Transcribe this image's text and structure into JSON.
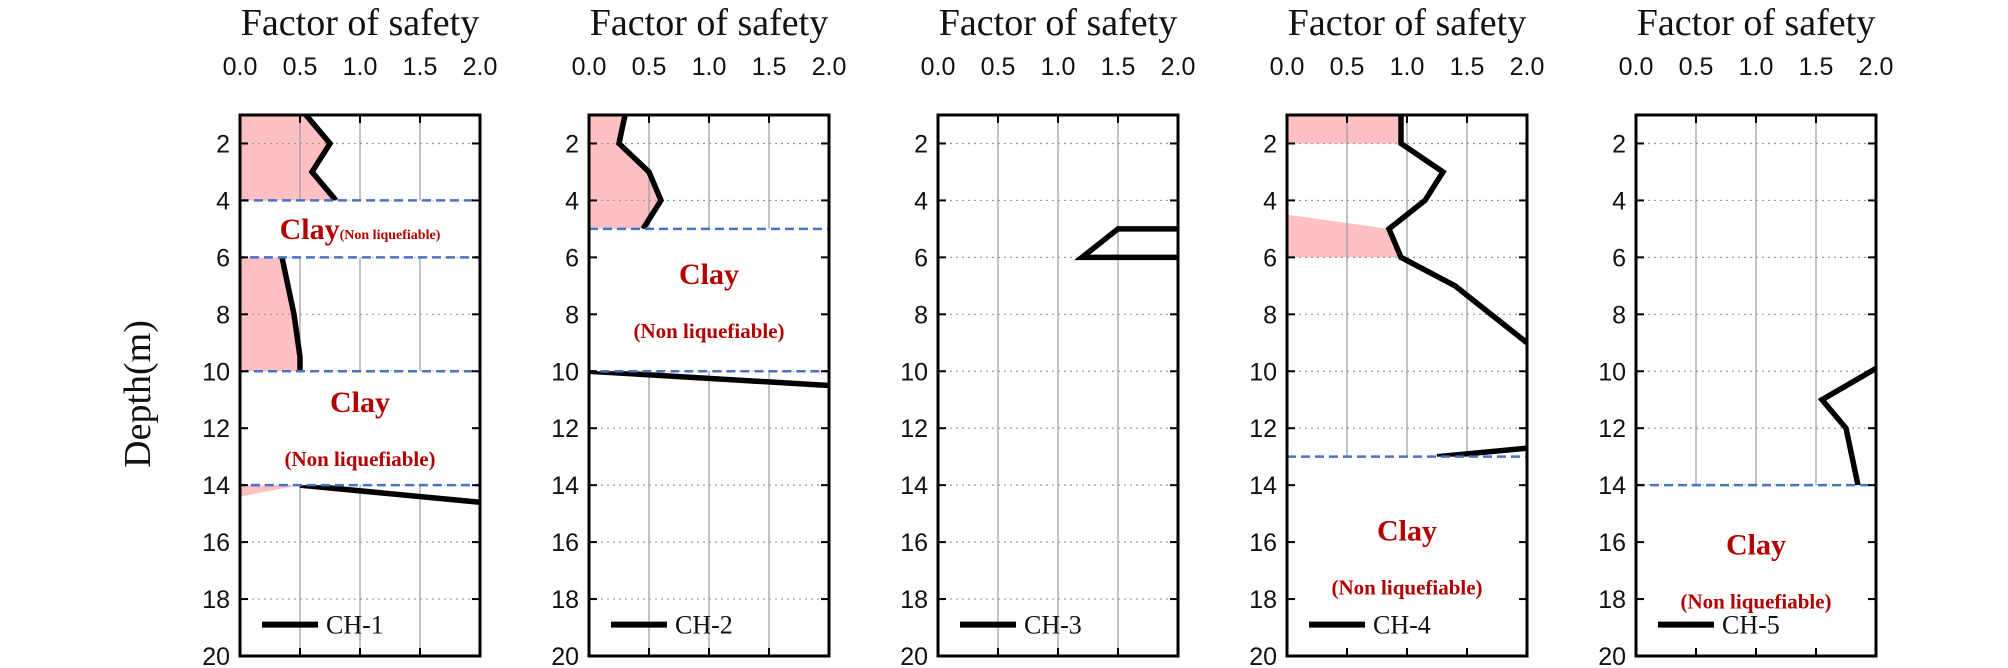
{
  "figure": {
    "ylabel": "Depth(m)"
  },
  "chart_data": [
    {
      "type": "line",
      "title": "Factor of safety",
      "xlim": [
        0,
        2
      ],
      "ylim": [
        1,
        20
      ],
      "xticks": [
        "0.0",
        "0.5",
        "1.0",
        "1.5",
        "2.0"
      ],
      "yticks": [
        "2",
        "4",
        "6",
        "8",
        "10",
        "12",
        "14",
        "16",
        "18",
        "20"
      ],
      "legend": "bottom-left",
      "series": [
        {
          "name": "CH-1",
          "color": "#000000",
          "segments": [
            [
              [
                0.55,
                1
              ],
              [
                0.75,
                2
              ],
              [
                0.6,
                3
              ],
              [
                0.8,
                4
              ]
            ],
            [
              [
                0.35,
                6
              ],
              [
                0.45,
                8
              ],
              [
                0.5,
                9.5
              ],
              [
                0.5,
                10
              ]
            ],
            [
              [
                0.5,
                14
              ],
              [
                2.0,
                14.6
              ]
            ]
          ]
        }
      ],
      "fill_below_1": {
        "color": "#ffc0c4",
        "ranges": [
          [
            1,
            4
          ],
          [
            6,
            10
          ],
          [
            14,
            14.4
          ]
        ]
      },
      "annotations": [
        {
          "main": "Clay",
          "sub": "(Non liquefiable)",
          "layout": "inline",
          "depth_range": [
            4,
            6
          ]
        },
        {
          "main": "Clay",
          "sub": "(Non liquefiable)",
          "layout": "stacked",
          "depth_range": [
            10,
            14
          ]
        }
      ]
    },
    {
      "type": "line",
      "title": "Factor of safety",
      "xlim": [
        0,
        2
      ],
      "ylim": [
        1,
        20
      ],
      "xticks": [
        "0.0",
        "0.5",
        "1.0",
        "1.5",
        "2.0"
      ],
      "yticks": [
        "2",
        "4",
        "6",
        "8",
        "10",
        "12",
        "14",
        "16",
        "18",
        "20"
      ],
      "legend": "bottom-left",
      "series": [
        {
          "name": "CH-2",
          "color": "#000000",
          "segments": [
            [
              [
                0.3,
                1
              ],
              [
                0.25,
                2
              ],
              [
                0.5,
                3
              ],
              [
                0.6,
                4
              ],
              [
                0.45,
                5
              ]
            ],
            [
              [
                0.0,
                10
              ],
              [
                2.0,
                10.5
              ]
            ]
          ]
        }
      ],
      "fill_below_1": {
        "color": "#ffc0c4",
        "ranges": [
          [
            1,
            5
          ],
          [
            10,
            10.2
          ]
        ]
      },
      "annotations": [
        {
          "main": "Clay",
          "sub": "(Non liquefiable)",
          "layout": "stacked",
          "depth_range": [
            5,
            10
          ]
        }
      ]
    },
    {
      "type": "line",
      "title": "Factor of safety",
      "xlim": [
        0,
        2
      ],
      "ylim": [
        1,
        20
      ],
      "xticks": [
        "0.0",
        "0.5",
        "1.0",
        "1.5",
        "2.0"
      ],
      "yticks": [
        "2",
        "4",
        "6",
        "8",
        "10",
        "12",
        "14",
        "16",
        "18",
        "20"
      ],
      "legend": "bottom-left",
      "series": [
        {
          "name": "CH-3",
          "color": "#000000",
          "segments": [
            [
              [
                2.0,
                5
              ],
              [
                1.5,
                5
              ],
              [
                1.2,
                6
              ],
              [
                2.0,
                6
              ]
            ]
          ]
        }
      ],
      "fill_below_1": {
        "color": "#ffc0c4",
        "ranges": []
      },
      "annotations": []
    },
    {
      "type": "line",
      "title": "Factor of safety",
      "xlim": [
        0,
        2
      ],
      "ylim": [
        1,
        20
      ],
      "xticks": [
        "0.0",
        "0.5",
        "1.0",
        "1.5",
        "2.0"
      ],
      "yticks": [
        "2",
        "4",
        "6",
        "8",
        "10",
        "12",
        "14",
        "16",
        "18",
        "20"
      ],
      "legend": "bottom-left",
      "series": [
        {
          "name": "CH-4",
          "color": "#000000",
          "segments": [
            [
              [
                0.95,
                1
              ],
              [
                0.95,
                2
              ],
              [
                1.3,
                3
              ],
              [
                1.15,
                4
              ],
              [
                0.85,
                5
              ],
              [
                0.95,
                6
              ],
              [
                1.4,
                7
              ],
              [
                1.7,
                8
              ],
              [
                2.0,
                9
              ]
            ],
            [
              [
                1.25,
                13
              ],
              [
                2.0,
                12.7
              ]
            ]
          ]
        }
      ],
      "fill_below_1": {
        "color": "#ffc0c4",
        "ranges": [
          [
            1,
            2
          ],
          [
            4.5,
            6
          ]
        ]
      },
      "annotations": [
        {
          "main": "Clay",
          "sub": "(Non liquefiable)",
          "layout": "stacked",
          "depth_range": [
            13,
            20
          ]
        }
      ]
    },
    {
      "type": "line",
      "title": "Factor of safety",
      "xlim": [
        0,
        2
      ],
      "ylim": [
        1,
        20
      ],
      "xticks": [
        "0.0",
        "0.5",
        "1.0",
        "1.5",
        "2.0"
      ],
      "yticks": [
        "2",
        "4",
        "6",
        "8",
        "10",
        "12",
        "14",
        "16",
        "18",
        "20"
      ],
      "legend": "bottom-left",
      "series": [
        {
          "name": "CH-5",
          "color": "#000000",
          "segments": [
            [
              [
                2.0,
                9.9
              ],
              [
                1.55,
                11
              ],
              [
                1.75,
                12
              ],
              [
                1.85,
                14
              ]
            ]
          ]
        }
      ],
      "fill_below_1": {
        "color": "#ffc0c4",
        "ranges": []
      },
      "annotations": [
        {
          "main": "Clay",
          "sub": "(Non liquefiable)",
          "layout": "stacked",
          "depth_range": [
            14,
            20
          ]
        }
      ]
    }
  ]
}
